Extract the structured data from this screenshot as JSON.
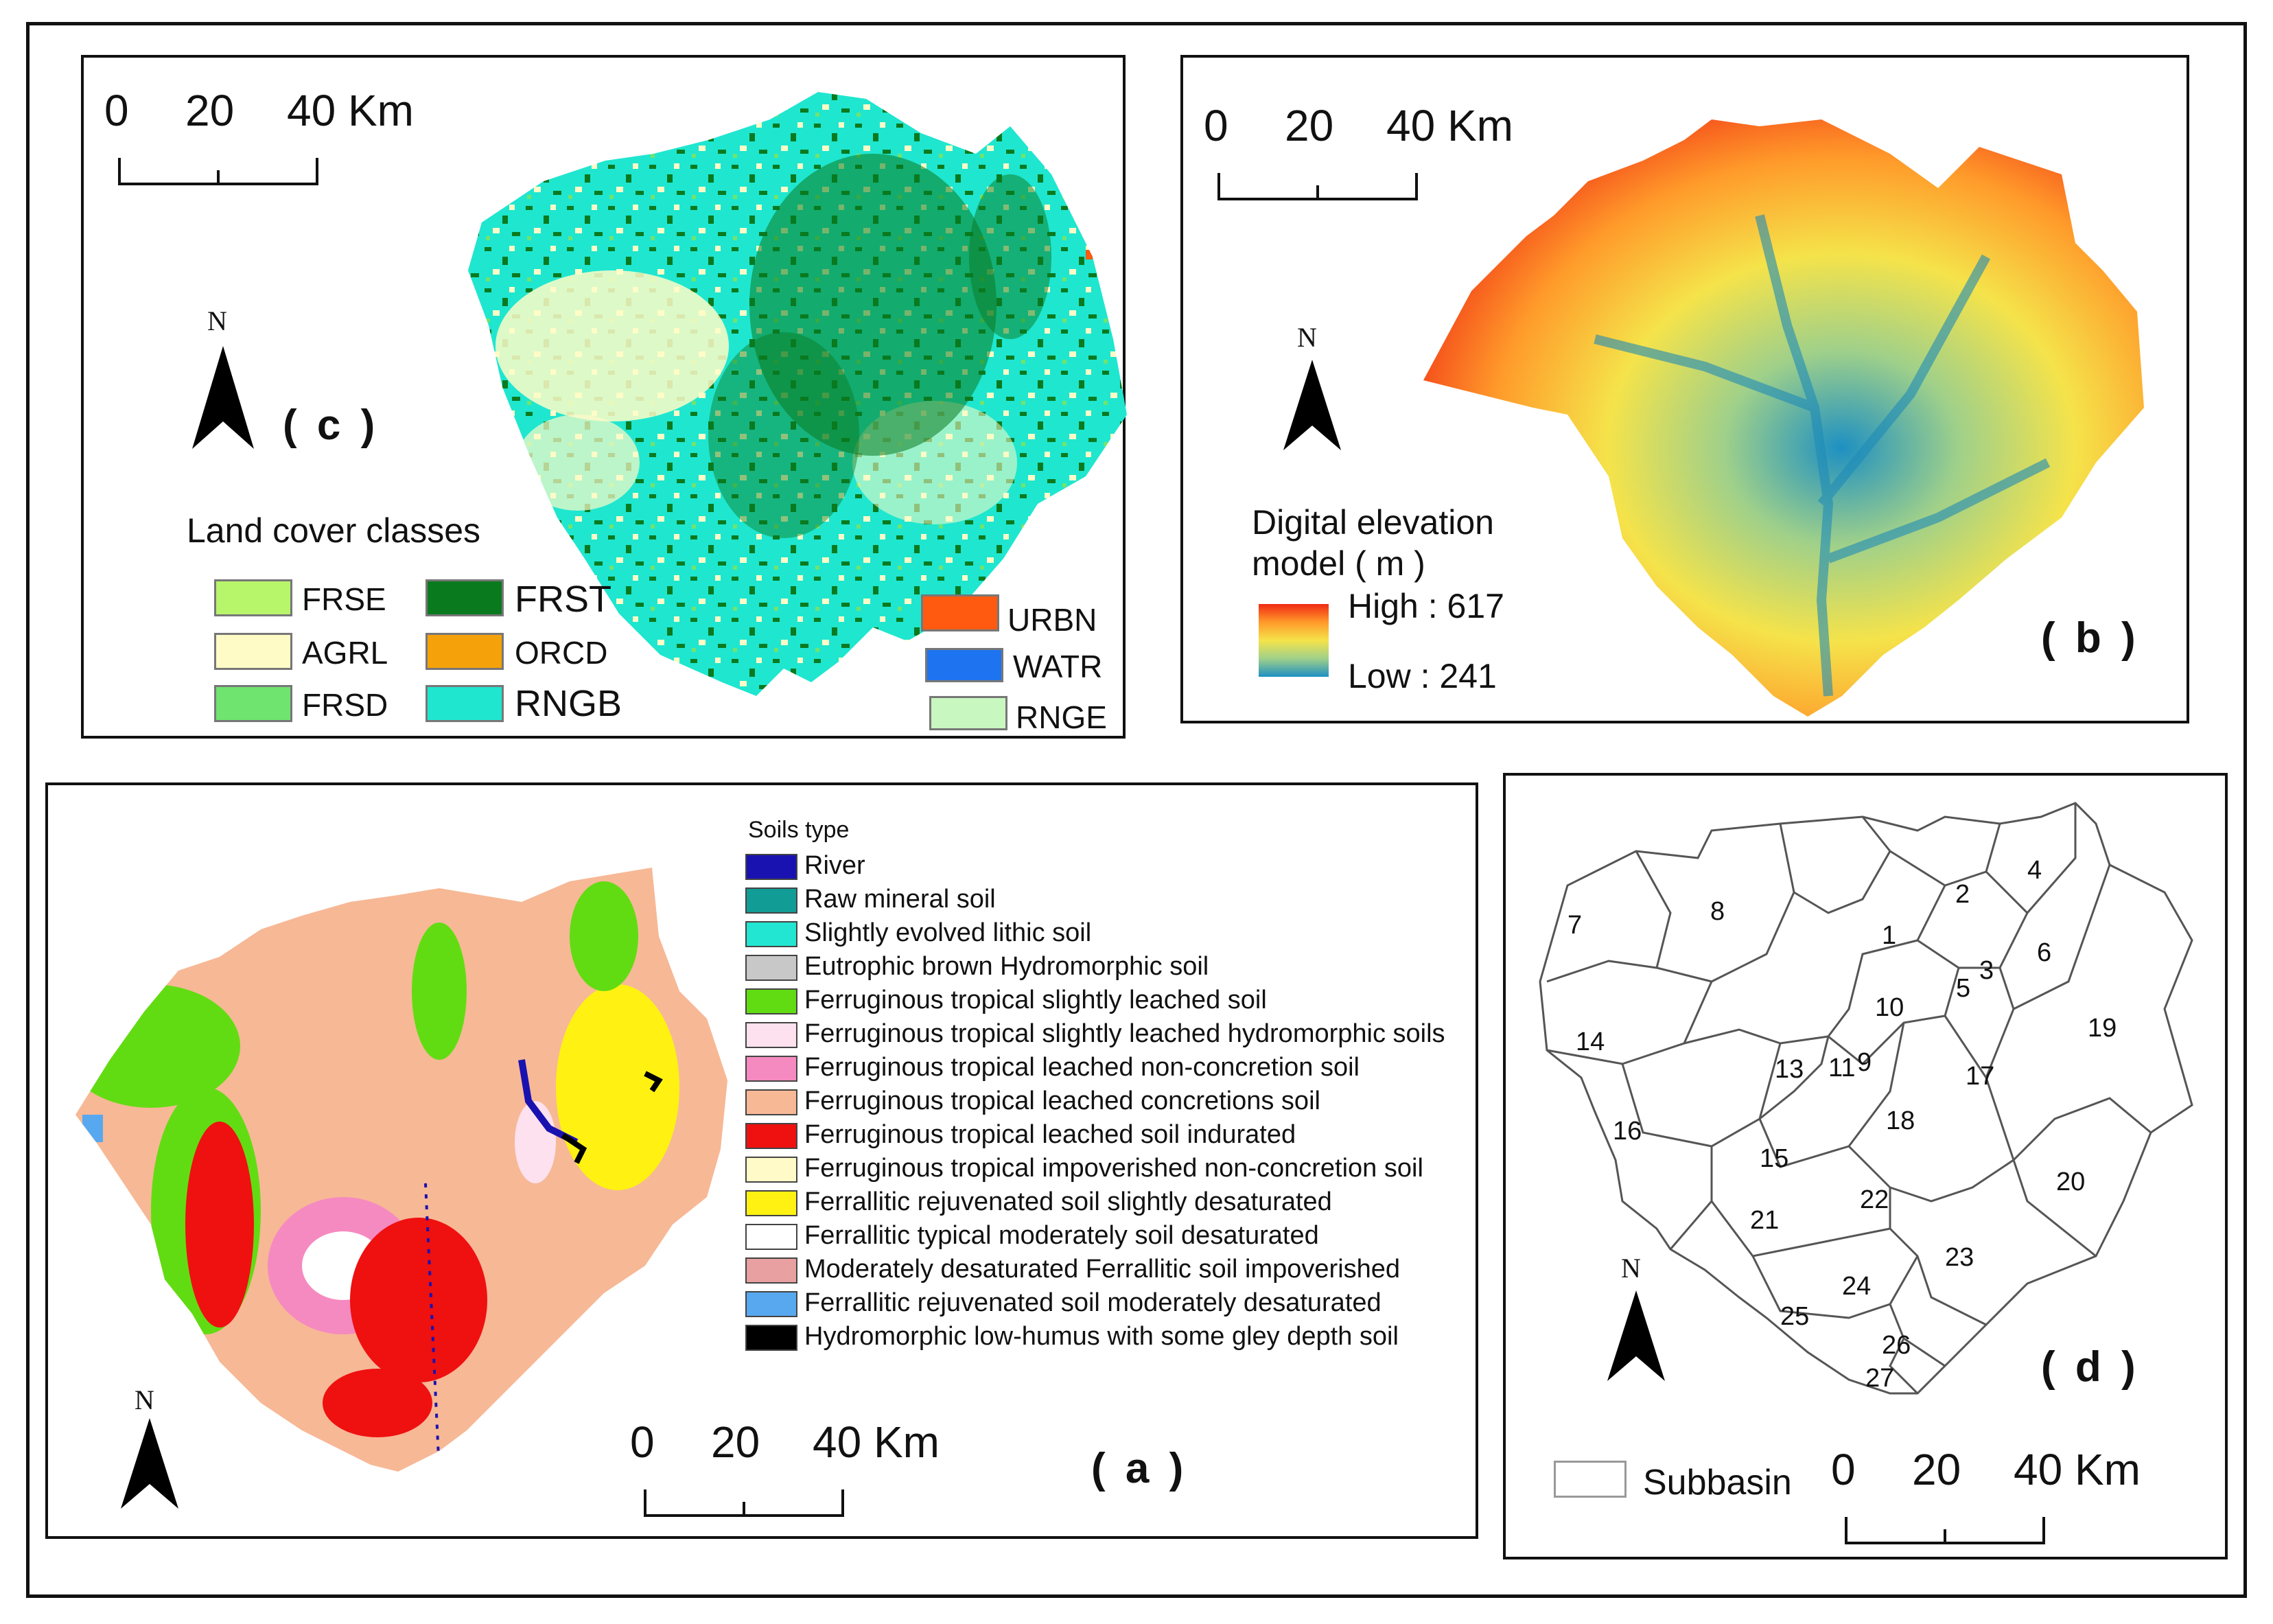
{
  "panel_c": {
    "label": "( c )",
    "north": "N",
    "scale": {
      "n0": "0",
      "n1": "20",
      "n2": "40 Km"
    },
    "legend_title": "Land cover classes",
    "classes": [
      {
        "code": "FRSE",
        "color": "#b7f56a"
      },
      {
        "code": "AGRL",
        "color": "#fffbc7"
      },
      {
        "code": "FRSD",
        "color": "#6fe46f"
      },
      {
        "code": "FRST",
        "color": "#0a7a1f"
      },
      {
        "code": "ORCD",
        "color": "#f5a20a"
      },
      {
        "code": "RNGB",
        "color": "#1fe6cf"
      },
      {
        "code": "URBN",
        "color": "#ff5a10"
      },
      {
        "code": "WATR",
        "color": "#1e74f0"
      },
      {
        "code": "RNGE",
        "color": "#c8f7c0"
      }
    ]
  },
  "panel_b": {
    "label": "( b )",
    "north": "N",
    "scale": {
      "n0": "0",
      "n1": "20",
      "n2": "40 Km"
    },
    "legend_title_1": "Digital elevation",
    "legend_title_2": "model ( m )",
    "high": "High : 617",
    "low": "Low : 241",
    "ramp_colors": [
      "#f02a14",
      "#ff9a2a",
      "#f5e34a",
      "#9fd08a",
      "#1e90c2"
    ]
  },
  "panel_a": {
    "label": "( a )",
    "north": "N",
    "scale": {
      "n0": "0",
      "n1": "20",
      "n2": "40 Km"
    },
    "legend_title": "Soils type",
    "soils": [
      {
        "label": "River",
        "color": "#1a12b0"
      },
      {
        "label": "Raw mineral soil",
        "color": "#129c96"
      },
      {
        "label": "Slightly evolved  lithic soil",
        "color": "#22e6d2"
      },
      {
        "label": "Eutrophic brown Hydromorphic soil",
        "color": "#c8c8c8"
      },
      {
        "label": "Ferruginous tropical slightly leached  soil",
        "color": "#62dc12"
      },
      {
        "label": "Ferruginous tropical slightly leached hydromorphic soils",
        "color": "#fde1ee"
      },
      {
        "label": "Ferruginous tropical leached non-concretion soil",
        "color": "#f58ac0"
      },
      {
        "label": "Ferruginous tropical leached concretions soil",
        "color": "#f7b896"
      },
      {
        "label": "Ferruginous tropical leached soil  indurated",
        "color": "#ef1010"
      },
      {
        "label": "Ferruginous tropical impoverished non-concretion soil",
        "color": "#fffac8"
      },
      {
        "label": "Ferrallitic rejuvenated soil slightly desaturated",
        "color": "#fff212"
      },
      {
        "label": "Ferrallitic  typical moderately soil desaturated",
        "color": "#ffffff"
      },
      {
        "label": "Moderately  desaturated Ferrallitic soil impoverished",
        "color": "#e8a0a0"
      },
      {
        "label": "Ferrallitic rejuvenated soil moderately desaturated",
        "color": "#58a8f0"
      },
      {
        "label": "Hydromorphic low-humus with some gley depth soil",
        "color": "#000000"
      }
    ]
  },
  "panel_d": {
    "label": "( d )",
    "north": "N",
    "scale": {
      "n0": "0",
      "n1": "20",
      "n2": "40 Km"
    },
    "legend_label": "Subbasin",
    "subbasins": [
      "1",
      "2",
      "4",
      "5",
      "3",
      "6",
      "7",
      "8",
      "10",
      "11",
      "9",
      "13",
      "14",
      "15",
      "16",
      "17",
      "18",
      "19",
      "20",
      "21",
      "22",
      "23",
      "24",
      "25",
      "26",
      "27"
    ]
  }
}
